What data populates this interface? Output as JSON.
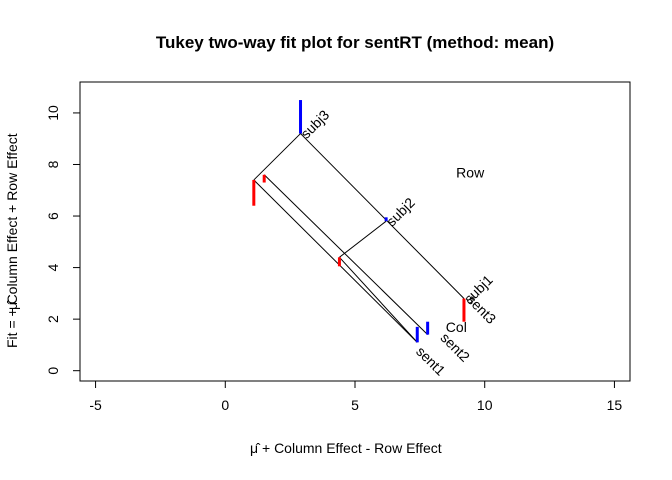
{
  "chart_data": {
    "type": "scatter",
    "title": "Tukey two-way fit plot for sentRT (method: mean)",
    "xlabel": "+ Column Effect - Row Effect",
    "xlabel_prefix": "μ̂",
    "ylabel": "Fit =  + Column Effect + Row Effect",
    "ylabel_prefix": "μ̂",
    "xlim": [
      -5.6,
      15.6
    ],
    "ylim": [
      -0.4,
      11.2
    ],
    "xticks": [
      -5,
      0,
      5,
      10,
      15
    ],
    "yticks": [
      0,
      2,
      4,
      6,
      8,
      10
    ],
    "grid": false,
    "legend": "none",
    "row_effects": [
      {
        "name": "subj1",
        "x": 9.2,
        "y": 2.8,
        "residual": 0
      },
      {
        "name": "subj2",
        "x": 6.2,
        "y": 5.8,
        "residual": 0.15
      },
      {
        "name": "subj3",
        "x": 2.9,
        "y": 9.2,
        "residual": 1.3
      }
    ],
    "col_effects": [
      {
        "name": "sent1",
        "x": 7.4,
        "y": 1.1,
        "residual": 0.6
      },
      {
        "name": "sent2",
        "x": 7.8,
        "y": 1.4,
        "residual": 0.5
      },
      {
        "name": "sent3",
        "x": 9.2,
        "y": 2.8,
        "residual": -0.9
      }
    ],
    "extra_residuals": [
      {
        "x": 1.1,
        "y": 7.4,
        "residual": -1.0
      },
      {
        "x": 1.5,
        "y": 7.6,
        "residual": -0.3
      },
      {
        "x": 4.4,
        "y": 4.4,
        "residual": -0.35
      }
    ],
    "row_label": "Row",
    "col_label": "Col",
    "row_label_pos": {
      "x": 8.9,
      "y": 7.5
    },
    "col_label_pos": {
      "x": 8.5,
      "y": 1.5
    },
    "colors": {
      "positive": "#0000ff",
      "negative": "#ff0000",
      "line": "#000000"
    }
  }
}
